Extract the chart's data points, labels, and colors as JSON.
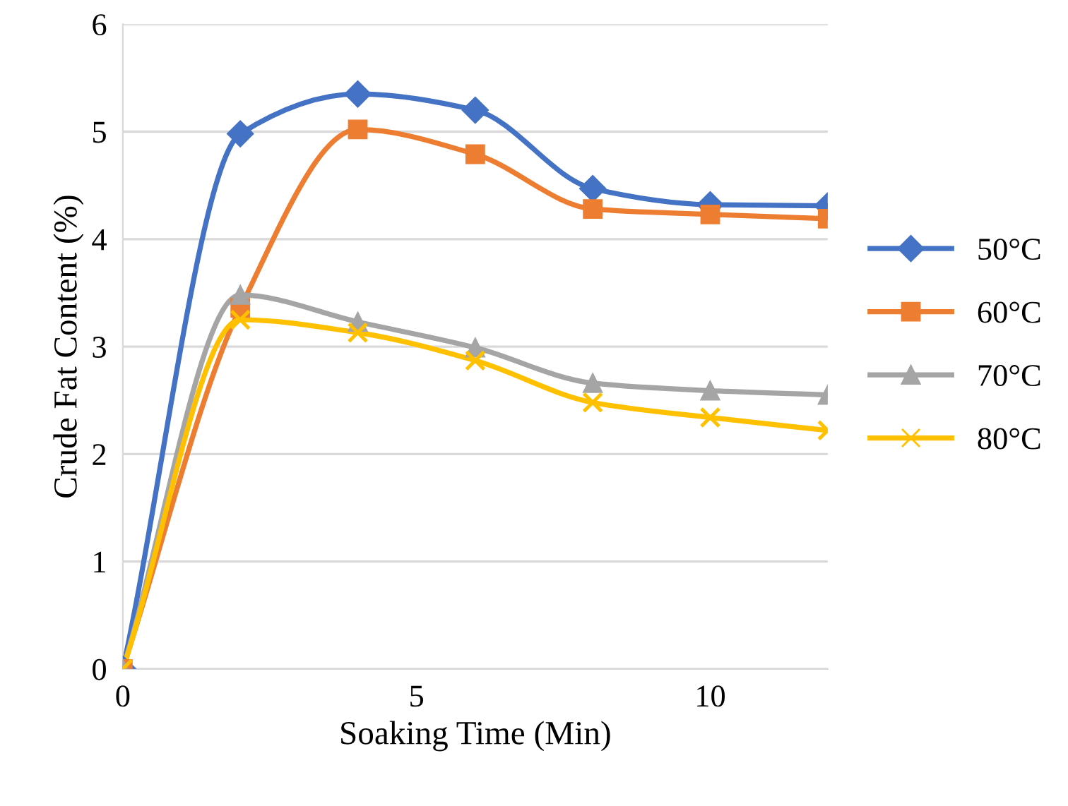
{
  "chart_data": {
    "type": "line",
    "xlabel": "Soaking Time (Min)",
    "ylabel": "Crude Fat Content (%)",
    "x": [
      0,
      2,
      4,
      6,
      8,
      10,
      12
    ],
    "series": [
      {
        "name": "50°C",
        "color": "#4472c4",
        "marker": "diamond",
        "values": [
          0,
          4.98,
          5.35,
          5.2,
          4.47,
          4.32,
          4.31
        ]
      },
      {
        "name": "60°C",
        "color": "#ed7d31",
        "marker": "square",
        "values": [
          0,
          3.36,
          5.02,
          4.79,
          4.28,
          4.23,
          4.19
        ]
      },
      {
        "name": "70°C",
        "color": "#a5a5a5",
        "marker": "triangle",
        "values": [
          0,
          3.48,
          3.23,
          2.99,
          2.66,
          2.59,
          2.55
        ]
      },
      {
        "name": "80°C",
        "color": "#ffc000",
        "marker": "cross",
        "values": [
          0,
          3.25,
          3.13,
          2.87,
          2.48,
          2.34,
          2.22
        ]
      }
    ],
    "xlim": [
      0,
      12
    ],
    "xticks": [
      0,
      5,
      10
    ],
    "ylim": [
      0,
      6
    ],
    "yticks": [
      0,
      1,
      2,
      3,
      4,
      5,
      6
    ],
    "grid": "y",
    "legend": "right",
    "line_style": "solid"
  }
}
